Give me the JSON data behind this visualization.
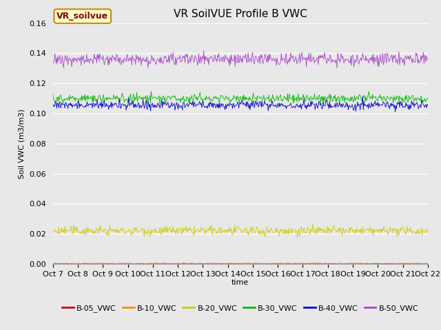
{
  "title": "VR SoilVUE Profile B VWC",
  "xlabel": "time",
  "ylabel": "Soil VWC (m3/m3)",
  "ylim": [
    0.0,
    0.16
  ],
  "yticks": [
    0.0,
    0.02,
    0.04,
    0.06,
    0.08,
    0.1,
    0.12,
    0.14,
    0.16
  ],
  "n_points": 600,
  "series": {
    "B-05_VWC": {
      "color": "#cc0000",
      "mean": 0.0003,
      "noise": 0.0001
    },
    "B-10_VWC": {
      "color": "#ff8800",
      "mean": 0.0003,
      "noise": 0.0001
    },
    "B-20_VWC": {
      "color": "#cccc00",
      "mean": 0.022,
      "noise": 0.0015
    },
    "B-30_VWC": {
      "color": "#00bb00",
      "mean": 0.11,
      "noise": 0.0015
    },
    "B-40_VWC": {
      "color": "#0000cc",
      "mean": 0.1055,
      "noise": 0.0015
    },
    "B-50_VWC": {
      "color": "#aa44cc",
      "mean": 0.136,
      "noise": 0.002
    }
  },
  "x_tick_labels": [
    "Oct 7",
    "Oct 8",
    "Oct 9",
    "Oct 10",
    "Oct 11",
    "Oct 12",
    "Oct 13",
    "Oct 14",
    "Oct 15",
    "Oct 16",
    "Oct 17",
    "Oct 18",
    "Oct 19",
    "Oct 20",
    "Oct 21",
    "Oct 22"
  ],
  "legend_label": "VR_soilvue",
  "legend_box_color": "#ffffcc",
  "legend_box_edge_color": "#cc8800",
  "legend_text_color": "#880000",
  "bg_color": "#e8e8e8",
  "plot_bg_color": "#e8e8e8",
  "grid_color": "#ffffff",
  "title_fontsize": 11,
  "axis_fontsize": 8,
  "tick_fontsize": 8
}
